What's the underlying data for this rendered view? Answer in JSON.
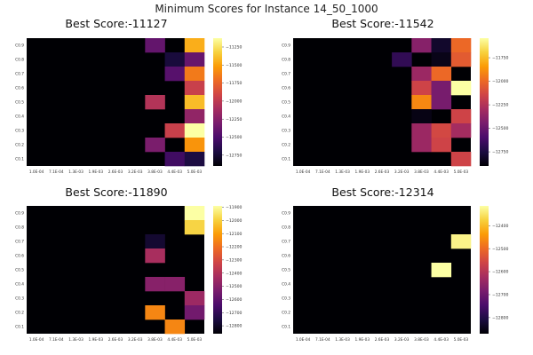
{
  "figure": {
    "title": "Minimum Scores for Instance 14_50_1000"
  },
  "palette": {
    "background": "#ffffff",
    "inferno_stops": [
      "#000004",
      "#1b0c41",
      "#4a0c6b",
      "#781c6d",
      "#a52c60",
      "#cf4446",
      "#ed6925",
      "#fb9b06",
      "#f7d13d",
      "#fcffa4"
    ]
  },
  "chart_data": [
    {
      "type": "heatmap",
      "title": "Best Score:-11127",
      "x_ticks": [
        "1.0E-04",
        "7.1E-04",
        "1.3E-03",
        "1.9E-03",
        "2.6E-03",
        "3.2E-03",
        "3.8E-03",
        "4.4E-03",
        "5.0E-03"
      ],
      "y_ticks": [
        "C0.1",
        "C0.2",
        "C0.3",
        "C0.4",
        "C0.5",
        "C0.6",
        "C0.7",
        "C0.8",
        "C0.9"
      ],
      "colorbar": {
        "ticks": [
          -11250,
          -11500,
          -11750,
          -12000,
          -12250,
          -12500,
          -12750
        ],
        "range": [
          -12900,
          -11127
        ]
      },
      "cells": [
        {
          "x": 6,
          "y": 8,
          "v": -12400
        },
        {
          "x": 8,
          "y": 8,
          "v": -11450
        },
        {
          "x": 7,
          "y": 7,
          "v": -12720
        },
        {
          "x": 8,
          "y": 7,
          "v": -12380
        },
        {
          "x": 7,
          "y": 6,
          "v": -12450
        },
        {
          "x": 8,
          "y": 6,
          "v": -11650
        },
        {
          "x": 8,
          "y": 5,
          "v": -11950
        },
        {
          "x": 6,
          "y": 4,
          "v": -12050
        },
        {
          "x": 8,
          "y": 4,
          "v": -11400
        },
        {
          "x": 8,
          "y": 3,
          "v": -12200
        },
        {
          "x": 7,
          "y": 2,
          "v": -11950
        },
        {
          "x": 8,
          "y": 2,
          "v": -11127
        },
        {
          "x": 6,
          "y": 1,
          "v": -12300
        },
        {
          "x": 8,
          "y": 1,
          "v": -11550
        },
        {
          "x": 7,
          "y": 0,
          "v": -12550
        },
        {
          "x": 8,
          "y": 0,
          "v": -12700
        }
      ]
    },
    {
      "type": "heatmap",
      "title": "Best Score:-11542",
      "x_ticks": [
        "1.0E-04",
        "7.1E-04",
        "1.3E-03",
        "1.9E-03",
        "2.6E-03",
        "3.2E-03",
        "3.8E-03",
        "4.4E-03",
        "5.0E-03"
      ],
      "y_ticks": [
        "C0.9",
        "C0.8",
        "C0.7",
        "C0.6",
        "C0.5",
        "C0.4",
        "C0.3",
        "C0.2",
        "C0.1"
      ],
      "colorbar": {
        "ticks": [
          -11750,
          -12000,
          -12250,
          -12500,
          -12750
        ],
        "range": [
          -12900,
          -11542
        ]
      },
      "cells": [
        {
          "x": 6,
          "y": 8,
          "v": -12400
        },
        {
          "x": 7,
          "y": 8,
          "v": -12800
        },
        {
          "x": 8,
          "y": 8,
          "v": -12000
        },
        {
          "x": 5,
          "y": 7,
          "v": -12680
        },
        {
          "x": 7,
          "y": 7,
          "v": -12850
        },
        {
          "x": 8,
          "y": 7,
          "v": -12050
        },
        {
          "x": 6,
          "y": 6,
          "v": -12330
        },
        {
          "x": 7,
          "y": 6,
          "v": -12000
        },
        {
          "x": 6,
          "y": 5,
          "v": -12150
        },
        {
          "x": 7,
          "y": 5,
          "v": -12450
        },
        {
          "x": 8,
          "y": 5,
          "v": -11542
        },
        {
          "x": 6,
          "y": 4,
          "v": -11900
        },
        {
          "x": 7,
          "y": 4,
          "v": -12450
        },
        {
          "x": 6,
          "y": 3,
          "v": -12860
        },
        {
          "x": 8,
          "y": 3,
          "v": -12150
        },
        {
          "x": 6,
          "y": 2,
          "v": -12330
        },
        {
          "x": 7,
          "y": 2,
          "v": -12130
        },
        {
          "x": 8,
          "y": 2,
          "v": -12300
        },
        {
          "x": 6,
          "y": 1,
          "v": -12330
        },
        {
          "x": 7,
          "y": 1,
          "v": -12150
        },
        {
          "x": 8,
          "y": 0,
          "v": -12150
        }
      ]
    },
    {
      "type": "heatmap",
      "title": "Best Score:-11890",
      "x_ticks": [
        "1.0E-04",
        "7.1E-04",
        "1.3E-03",
        "1.9E-03",
        "2.6E-03",
        "3.2E-03",
        "3.8E-03",
        "4.4E-03",
        "5.0E-03"
      ],
      "y_ticks": [
        "C0.9",
        "C0.8",
        "C0.7",
        "C0.6",
        "C0.5",
        "C0.4",
        "C0.3",
        "C0.2",
        "C0.1"
      ],
      "colorbar": {
        "ticks": [
          -11900,
          -12000,
          -12100,
          -12200,
          -12300,
          -12400,
          -12500,
          -12600,
          -12700,
          -12800
        ],
        "range": [
          -12860,
          -11890
        ]
      },
      "cells": [
        {
          "x": 8,
          "y": 8,
          "v": -11890
        },
        {
          "x": 8,
          "y": 7,
          "v": -11990
        },
        {
          "x": 6,
          "y": 6,
          "v": -12780
        },
        {
          "x": 6,
          "y": 5,
          "v": -12420
        },
        {
          "x": 6,
          "y": 3,
          "v": -12500
        },
        {
          "x": 7,
          "y": 3,
          "v": -12500
        },
        {
          "x": 8,
          "y": 2,
          "v": -12450
        },
        {
          "x": 6,
          "y": 1,
          "v": -12150
        },
        {
          "x": 8,
          "y": 1,
          "v": -12550
        },
        {
          "x": 7,
          "y": 0,
          "v": -12150
        }
      ]
    },
    {
      "type": "heatmap",
      "title": "Best Score:-12314",
      "x_ticks": [
        "1.0E-04",
        "7.1E-04",
        "1.3E-03",
        "1.9E-03",
        "2.6E-03",
        "3.2E-03",
        "3.8E-03",
        "4.4E-03",
        "5.0E-03"
      ],
      "y_ticks": [
        "C0.9",
        "C0.8",
        "C0.7",
        "C0.6",
        "C0.5",
        "C0.4",
        "C0.3",
        "C0.2",
        "C0.1"
      ],
      "colorbar": {
        "ticks": [
          -12400,
          -12500,
          -12600,
          -12700,
          -12800
        ],
        "range": [
          -12870,
          -12314
        ]
      },
      "cells": [
        {
          "x": 8,
          "y": 6,
          "v": -12330
        },
        {
          "x": 7,
          "y": 4,
          "v": -12314
        }
      ]
    }
  ]
}
